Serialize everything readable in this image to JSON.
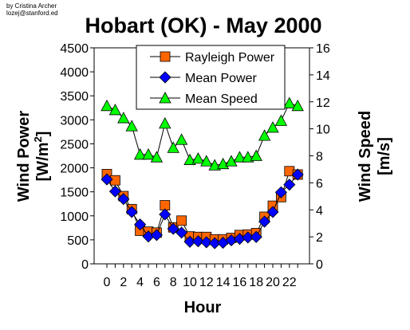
{
  "credit": {
    "line1": "by Cristina Archer",
    "line2": "lozej@stanford.ed"
  },
  "chart_data": {
    "type": "line",
    "title": "Hobart (OK) - May 2000",
    "xlabel": "Hour",
    "ylabel_left_line1": "Wind Power",
    "ylabel_left_line2_prefix": "[W/m",
    "ylabel_left_line2_sup": "2",
    "ylabel_left_line2_suffix": "]",
    "ylabel_right_line1": "Wind Speed",
    "ylabel_right_line2": "[m/s]",
    "x": [
      0,
      1,
      2,
      3,
      4,
      5,
      6,
      7,
      8,
      9,
      10,
      11,
      12,
      13,
      14,
      15,
      16,
      17,
      18,
      19,
      20,
      21,
      22,
      23
    ],
    "xticks": [
      "0",
      "2",
      "4",
      "6",
      "8",
      "10",
      "12",
      "14",
      "16",
      "18",
      "20",
      "22"
    ],
    "xtick_values": [
      0,
      2,
      4,
      6,
      8,
      10,
      12,
      14,
      16,
      18,
      20,
      22
    ],
    "ylim_left": [
      0,
      4500
    ],
    "yticks_left": [
      "0",
      "500",
      "1000",
      "1500",
      "2000",
      "2500",
      "3000",
      "3500",
      "4000",
      "4500"
    ],
    "ylim_right": [
      0,
      16
    ],
    "yticks_right": [
      "0",
      "2",
      "4",
      "6",
      "8",
      "10",
      "12",
      "14",
      "16"
    ],
    "grid": false,
    "legend_position": "top-center",
    "series": [
      {
        "name": "Rayleigh Power",
        "axis": "left",
        "marker": "square",
        "color": "#ff6600",
        "values": [
          1870,
          1740,
          1410,
          1140,
          690,
          670,
          650,
          1220,
          760,
          900,
          570,
          560,
          560,
          510,
          510,
          540,
          600,
          610,
          640,
          980,
          1210,
          1390,
          1930,
          1860
        ]
      },
      {
        "name": "Mean Power",
        "axis": "left",
        "marker": "diamond",
        "color": "#0000ff",
        "values": [
          1760,
          1510,
          1350,
          1080,
          820,
          570,
          600,
          1030,
          730,
          650,
          460,
          470,
          450,
          430,
          440,
          490,
          520,
          550,
          560,
          880,
          1080,
          1490,
          1650,
          1860
        ]
      },
      {
        "name": "Mean Speed",
        "axis": "right",
        "marker": "triangle",
        "color": "#00ff00",
        "values": [
          11.7,
          11.4,
          10.8,
          10.2,
          8.1,
          8.1,
          7.9,
          10.4,
          8.6,
          9.2,
          7.7,
          7.8,
          7.6,
          7.3,
          7.4,
          7.6,
          7.9,
          7.9,
          8.0,
          9.5,
          10.1,
          10.6,
          11.9,
          11.7
        ]
      }
    ]
  }
}
